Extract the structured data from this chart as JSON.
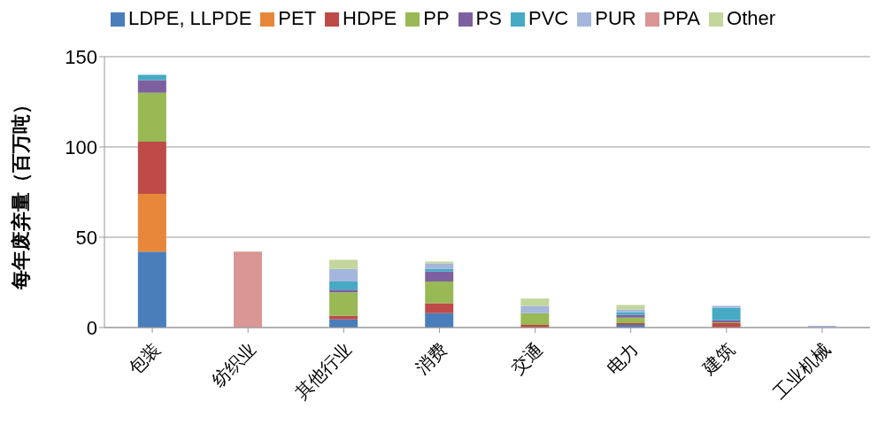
{
  "chart_data": {
    "type": "bar",
    "stacked": true,
    "ylabel": "每年废弃量（百万吨）",
    "categories": [
      "包装",
      "纺织业",
      "其他行业",
      "消费",
      "交通",
      "电力",
      "建筑",
      "工业机械"
    ],
    "series": [
      {
        "name": "LDPE, LLPDE",
        "color": "#4a7ebb",
        "values": [
          42,
          0,
          4.5,
          8,
          0,
          1.5,
          null,
          0
        ]
      },
      {
        "name": "PET",
        "color": "#e8873a",
        "values": [
          32,
          0,
          0,
          0,
          0,
          0,
          0,
          0
        ]
      },
      {
        "name": "HDPE",
        "color": "#be4b48",
        "values": [
          29,
          0,
          2,
          5.5,
          1.5,
          1,
          2.5,
          0
        ]
      },
      {
        "name": "PP",
        "color": "#98b954",
        "values": [
          27,
          0,
          13,
          12,
          6.5,
          3,
          0.5,
          0
        ]
      },
      {
        "name": "PS",
        "color": "#7d60a0",
        "values": [
          7,
          0,
          1.5,
          5.5,
          0,
          1.5,
          1,
          0
        ]
      },
      {
        "name": "PVC",
        "color": "#46aac5",
        "values": [
          3,
          0,
          4.5,
          1.5,
          0,
          1.5,
          7,
          0
        ]
      },
      {
        "name": "PUR",
        "color": "#a5b6dc",
        "values": [
          0,
          0,
          7,
          3,
          4,
          1.5,
          1,
          1
        ]
      },
      {
        "name": "PPA",
        "color": "#d99694",
        "values": [
          0,
          42,
          0,
          0,
          0,
          0,
          0,
          0
        ]
      },
      {
        "name": "Other",
        "color": "#c3d69b",
        "values": [
          0,
          0,
          5,
          1,
          4,
          2.5,
          0,
          0
        ]
      }
    ],
    "ylim": [
      0,
      150
    ],
    "yticks": [
      0,
      50,
      100,
      150
    ],
    "grid": "y",
    "legend": "top"
  }
}
